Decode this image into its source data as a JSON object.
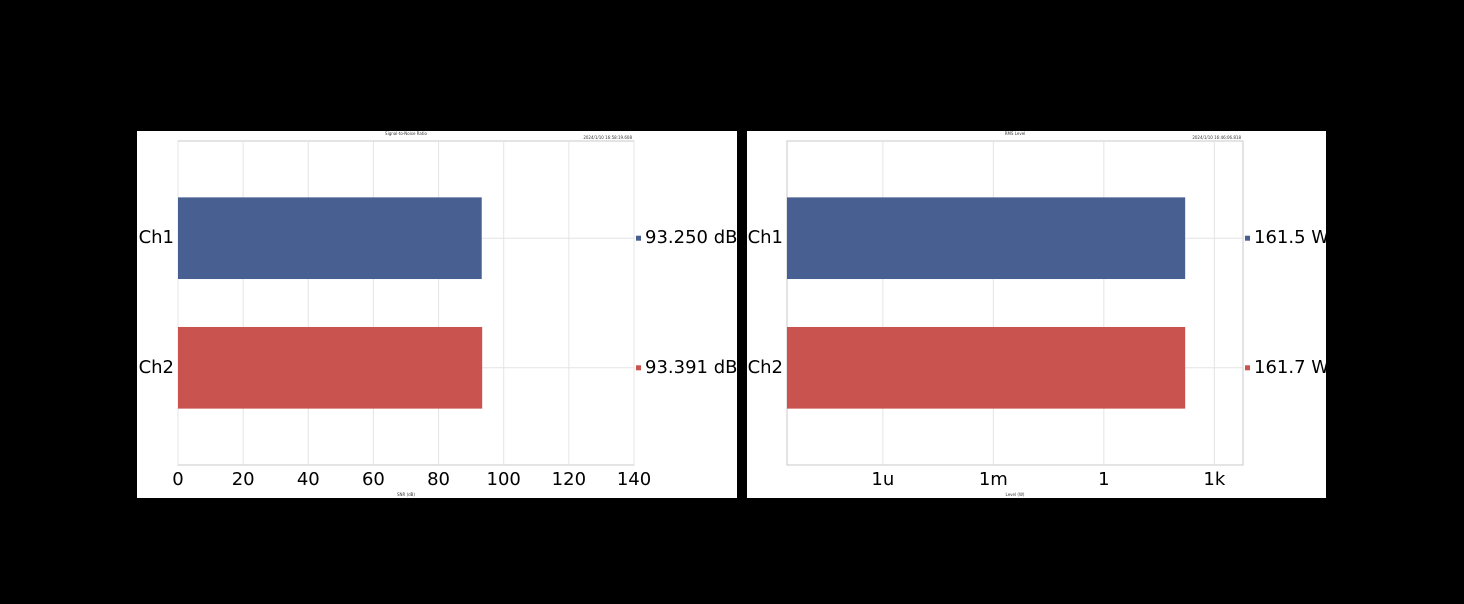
{
  "chart_data": [
    {
      "type": "bar",
      "orientation": "horizontal",
      "title": "Signal-to-Noise Ratio",
      "timestamp": "2024/1/10 16:58:19.608",
      "xlabel": "SNR (dB)",
      "categories": [
        "Ch1",
        "Ch2"
      ],
      "values": [
        93.25,
        93.391
      ],
      "value_labels": [
        "93.250 dB",
        "93.391 dB"
      ],
      "colors": [
        "#475f91",
        "#c9534e"
      ],
      "xlim": [
        0,
        140
      ],
      "xticks": [
        0,
        20,
        40,
        60,
        80,
        100,
        120,
        140
      ],
      "grid": true,
      "log": false
    },
    {
      "type": "bar",
      "orientation": "horizontal",
      "title": "RMS Level",
      "timestamp": "2024/1/10 16:46:06.818",
      "xlabel": "Level (W)",
      "categories": [
        "Ch1",
        "Ch2"
      ],
      "values": [
        161.5,
        161.7
      ],
      "value_labels": [
        "161.5 W",
        "161.7 W"
      ],
      "colors": [
        "#475f91",
        "#c9534e"
      ],
      "xlim": [
        2.5e-09,
        6000
      ],
      "xticks": [
        {
          "value": 1e-06,
          "label": "1u"
        },
        {
          "value": 0.001,
          "label": "1m"
        },
        1,
        {
          "value": 1000,
          "label": "1k"
        }
      ],
      "grid": true,
      "log": true
    }
  ]
}
